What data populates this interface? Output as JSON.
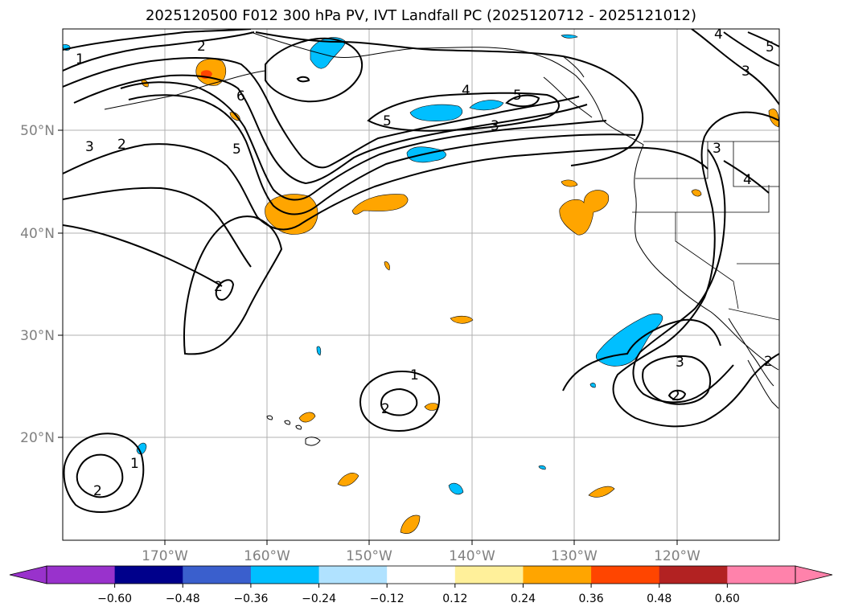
{
  "title": "2025120500 F012 300 hPa PV, IVT Landfall PC (2025120712 - 2025121012)",
  "lat_labels": [
    "50°N",
    "40°N",
    "30°N",
    "20°N"
  ],
  "lon_labels": [
    "170°W",
    "160°W",
    "150°W",
    "140°W",
    "130°W",
    "120°W"
  ],
  "colorbar": {
    "colors": [
      "#9932cc",
      "#00008b",
      "#3a5fcd",
      "#00bfff",
      "#b0e2ff",
      "#ffffff",
      "#fff09a",
      "#ffa500",
      "#ff4500",
      "#b22222",
      "#ff82ab"
    ],
    "under_color": "#9932cc",
    "over_color": "#ff82ab",
    "tick_labels": [
      "−0.60",
      "−0.48",
      "−0.36",
      "−0.24",
      "−0.12",
      "0.12",
      "0.24",
      "0.36",
      "0.48",
      "0.60"
    ]
  },
  "contour_labels": [
    "1",
    "2",
    "2",
    "3",
    "5",
    "6",
    "4",
    "5",
    "3",
    "5",
    "4",
    "5",
    "3",
    "3",
    "2",
    "2",
    "1",
    "3",
    "2",
    "1",
    "2",
    "2",
    "4"
  ],
  "colors": {
    "orange": "#ffa500",
    "cyan": "#00bfff",
    "red": "#ff4500",
    "grid": "#b0b0b0"
  }
}
